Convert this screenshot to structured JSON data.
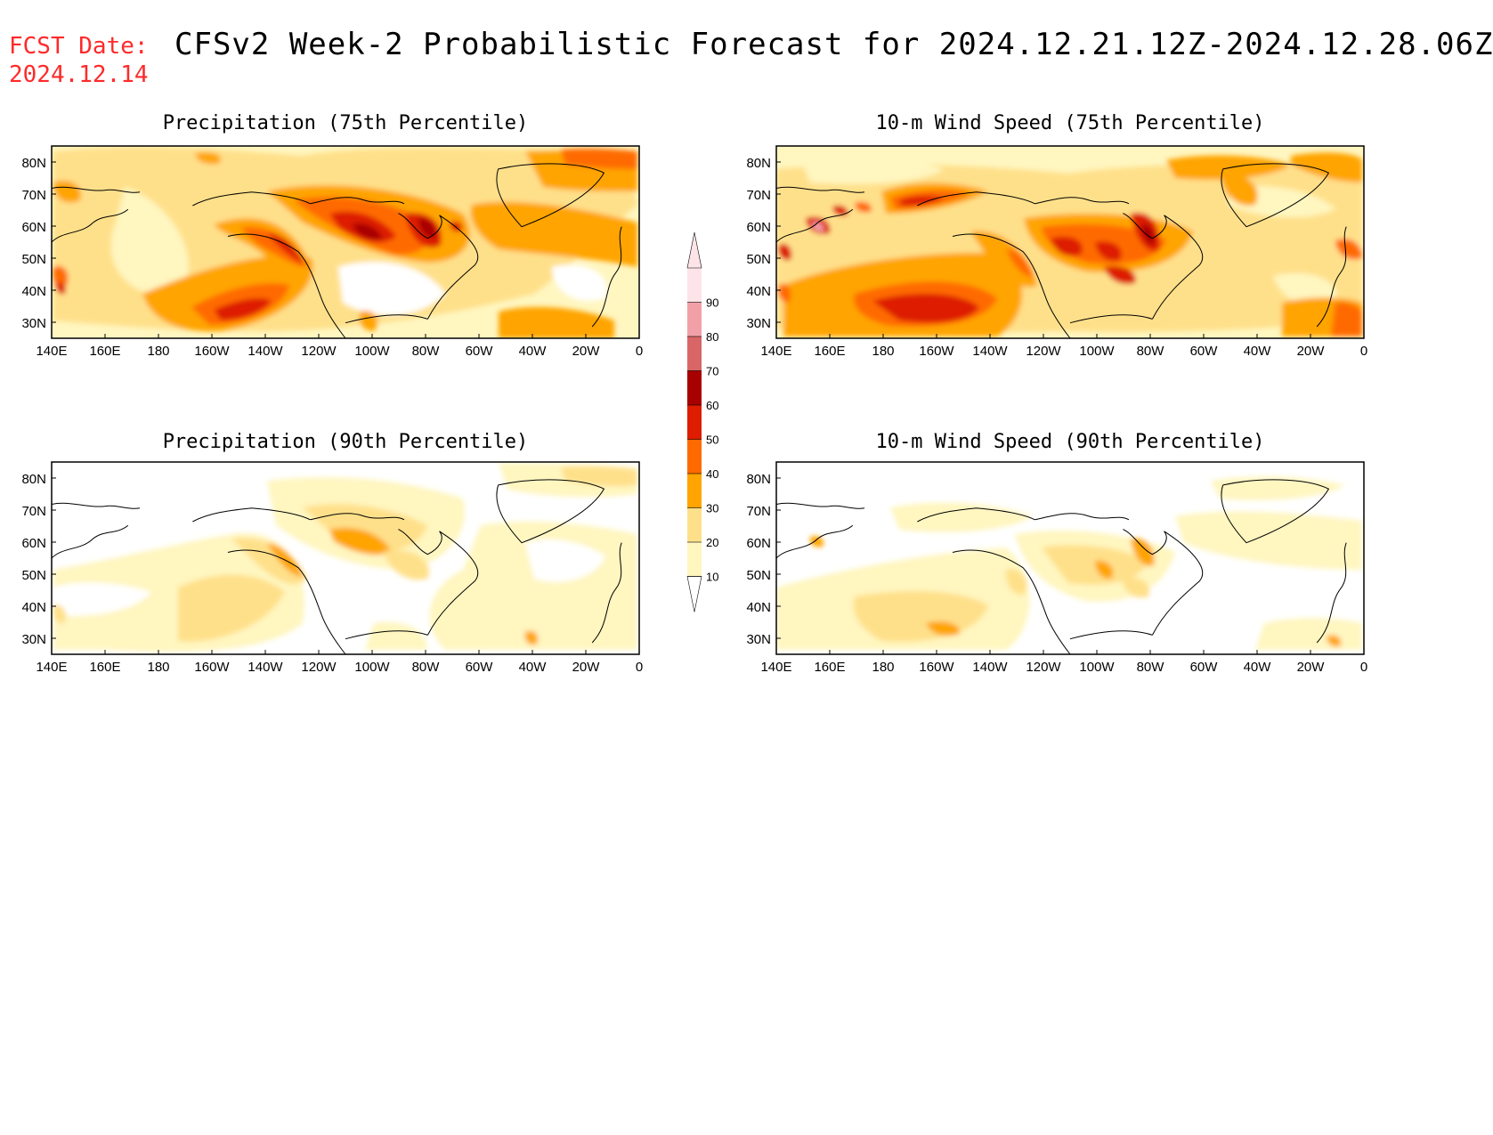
{
  "header": {
    "fcst_label": "FCST Date:",
    "fcst_date": "2024.12.14",
    "title": "CFSv2 Week-2 Probabilistic Forecast for 2024.12.21.12Z-2024.12.28.06Z",
    "fcst_color": "#ff2a2a"
  },
  "panels": [
    {
      "id": "p75",
      "title": "Precipitation (75th Percentile)"
    },
    {
      "id": "w75",
      "title": "10-m Wind Speed (75th Percentile)"
    },
    {
      "id": "p90",
      "title": "Precipitation (90th Percentile)"
    },
    {
      "id": "w90",
      "title": "10-m Wind Speed (90th Percentile)"
    }
  ],
  "axes": {
    "lon_labels": [
      "140E",
      "160E",
      "180",
      "160W",
      "140W",
      "120W",
      "100W",
      "80W",
      "60W",
      "40W",
      "20W",
      "0"
    ],
    "lat_labels": [
      "80N",
      "70N",
      "60N",
      "50N",
      "40N",
      "30N"
    ]
  },
  "colorbar": {
    "labels": [
      "10",
      "20",
      "30",
      "40",
      "50",
      "60",
      "70",
      "80",
      "90"
    ],
    "colors": [
      "#fff6c0",
      "#ffe08a",
      "#ffa400",
      "#ff6a00",
      "#dd1c00",
      "#a80000",
      "#d96666",
      "#f2a0a8",
      "#fde4e8"
    ]
  }
}
